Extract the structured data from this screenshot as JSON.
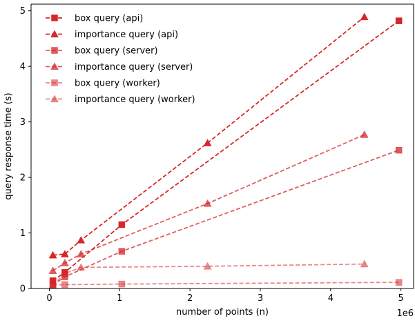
{
  "chart_data": {
    "type": "line",
    "xlabel": "number of points (n)",
    "ylabel": "query response time (s)",
    "x_offset_label": "1e6",
    "xlim": [
      -0.26,
      5.18
    ],
    "ylim": [
      0,
      5.12
    ],
    "xticks": [
      0,
      1,
      2,
      3,
      4,
      5
    ],
    "yticks": [
      0,
      1,
      2,
      3,
      4,
      5
    ],
    "grid": false,
    "legend_position": "upper-left",
    "series": [
      {
        "name": "box query (api)",
        "marker": "square",
        "color": "#d62728",
        "alpha": 1.0,
        "x": [
          0.05,
          0.22,
          1.03,
          4.97
        ],
        "y": [
          0.14,
          0.29,
          1.15,
          4.82
        ]
      },
      {
        "name": "importance query (api)",
        "marker": "triangle",
        "color": "#d62728",
        "alpha": 1.0,
        "x": [
          0.05,
          0.22,
          0.45,
          2.25,
          4.48
        ],
        "y": [
          0.6,
          0.62,
          0.87,
          2.62,
          4.89
        ]
      },
      {
        "name": "box query (server)",
        "marker": "square",
        "color": "#d62728",
        "alpha": 0.75,
        "x": [
          0.05,
          0.22,
          1.03,
          4.97
        ],
        "y": [
          0.06,
          0.21,
          0.67,
          2.49
        ]
      },
      {
        "name": "importance query (server)",
        "marker": "triangle",
        "color": "#d62728",
        "alpha": 0.75,
        "x": [
          0.05,
          0.22,
          0.45,
          2.25,
          4.48
        ],
        "y": [
          0.32,
          0.46,
          0.62,
          1.53,
          2.77
        ]
      },
      {
        "name": "box query (worker)",
        "marker": "square",
        "color": "#d62728",
        "alpha": 0.55,
        "x": [
          0.05,
          0.22,
          1.03,
          4.97
        ],
        "y": [
          0.06,
          0.07,
          0.08,
          0.11
        ]
      },
      {
        "name": "importance query (worker)",
        "marker": "triangle",
        "color": "#d62728",
        "alpha": 0.55,
        "x": [
          0.05,
          0.22,
          0.45,
          2.25,
          4.48
        ],
        "y": [
          0.06,
          0.27,
          0.38,
          0.4,
          0.44
        ]
      }
    ]
  }
}
